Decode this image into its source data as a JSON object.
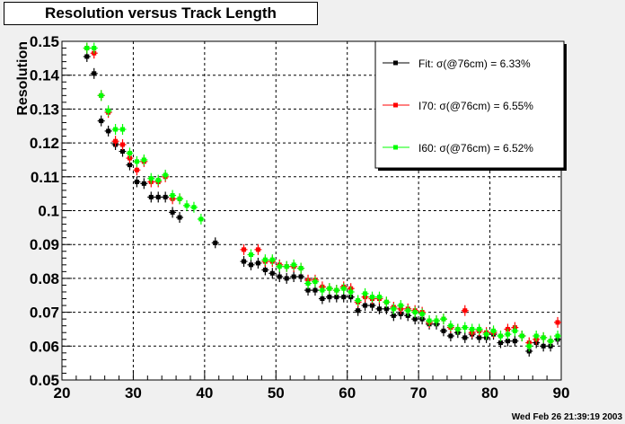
{
  "chart_data": {
    "type": "scatter",
    "title": "Resolution versus Track Length",
    "xlabel": "",
    "ylabel": "Resolution",
    "xlim": [
      20,
      90
    ],
    "ylim": [
      0.05,
      0.15
    ],
    "grid": true,
    "legend_placement": "top-right",
    "x_ticks": [
      "20",
      "30",
      "40",
      "50",
      "60",
      "70",
      "80",
      "90"
    ],
    "y_ticks": [
      "0.05",
      "0.06",
      "0.07",
      "0.08",
      "0.09",
      "0.1",
      "0.11",
      "0.12",
      "0.13",
      "0.14",
      "0.15"
    ],
    "series": [
      {
        "name": "Fit:  σ(@76cm) =  6.33%",
        "color": "#000000",
        "marker": "square",
        "points": [
          [
            23.5,
            0.1455
          ],
          [
            24.5,
            0.1405
          ],
          [
            25.5,
            0.1265
          ],
          [
            26.5,
            0.1235
          ],
          [
            27.5,
            0.1195
          ],
          [
            28.5,
            0.1175
          ],
          [
            29.5,
            0.1135
          ],
          [
            30.5,
            0.1085
          ],
          [
            31.5,
            0.108
          ],
          [
            32.5,
            0.104
          ],
          [
            33.5,
            0.104
          ],
          [
            34.5,
            0.104
          ],
          [
            35.5,
            0.0995
          ],
          [
            36.5,
            0.098
          ],
          [
            41.5,
            0.0905
          ],
          [
            45.5,
            0.085
          ],
          [
            46.5,
            0.084
          ],
          [
            47.5,
            0.0845
          ],
          [
            48.5,
            0.0825
          ],
          [
            49.5,
            0.0815
          ],
          [
            50.5,
            0.0805
          ],
          [
            51.5,
            0.08
          ],
          [
            52.5,
            0.0805
          ],
          [
            53.5,
            0.0805
          ],
          [
            54.5,
            0.0765
          ],
          [
            55.5,
            0.0765
          ],
          [
            56.5,
            0.074
          ],
          [
            57.5,
            0.0745
          ],
          [
            58.5,
            0.0745
          ],
          [
            59.5,
            0.0745
          ],
          [
            60.5,
            0.0745
          ],
          [
            61.5,
            0.0705
          ],
          [
            62.5,
            0.072
          ],
          [
            63.5,
            0.072
          ],
          [
            64.5,
            0.071
          ],
          [
            65.5,
            0.071
          ],
          [
            66.5,
            0.069
          ],
          [
            67.5,
            0.0695
          ],
          [
            68.5,
            0.069
          ],
          [
            69.5,
            0.068
          ],
          [
            70.5,
            0.068
          ],
          [
            71.5,
            0.0665
          ],
          [
            72.5,
            0.0665
          ],
          [
            73.5,
            0.0645
          ],
          [
            74.5,
            0.063
          ],
          [
            75.5,
            0.064
          ],
          [
            76.5,
            0.0625
          ],
          [
            77.5,
            0.0635
          ],
          [
            78.5,
            0.0625
          ],
          [
            79.5,
            0.0625
          ],
          [
            80.5,
            0.0635
          ],
          [
            81.5,
            0.061
          ],
          [
            82.5,
            0.0615
          ],
          [
            83.5,
            0.0615
          ],
          [
            84.5,
            0.063
          ],
          [
            85.5,
            0.0585
          ],
          [
            86.5,
            0.061
          ],
          [
            87.5,
            0.06
          ],
          [
            88.5,
            0.06
          ],
          [
            89.5,
            0.062
          ]
        ]
      },
      {
        "name": "I70:  σ(@76cm) =  6.55%",
        "color": "#ff0000",
        "marker": "square",
        "points": [
          [
            23.5,
            0.148
          ],
          [
            24.5,
            0.1465
          ],
          [
            25.5,
            0.134
          ],
          [
            26.5,
            0.129
          ],
          [
            27.5,
            0.1205
          ],
          [
            28.5,
            0.1195
          ],
          [
            29.5,
            0.1155
          ],
          [
            30.5,
            0.112
          ],
          [
            31.5,
            0.1145
          ],
          [
            32.5,
            0.1085
          ],
          [
            33.5,
            0.1085
          ],
          [
            34.5,
            0.11
          ],
          [
            35.5,
            0.1035
          ],
          [
            36.5,
            0.1035
          ],
          [
            45.5,
            0.0885
          ],
          [
            47.5,
            0.0885
          ],
          [
            48.5,
            0.085
          ],
          [
            49.5,
            0.085
          ],
          [
            50.5,
            0.084
          ],
          [
            51.5,
            0.0835
          ],
          [
            52.5,
            0.0835
          ],
          [
            53.5,
            0.083
          ],
          [
            54.5,
            0.0795
          ],
          [
            55.5,
            0.0795
          ],
          [
            56.5,
            0.0775
          ],
          [
            57.5,
            0.077
          ],
          [
            58.5,
            0.0765
          ],
          [
            59.5,
            0.0775
          ],
          [
            60.5,
            0.077
          ],
          [
            61.5,
            0.073
          ],
          [
            62.5,
            0.0745
          ],
          [
            63.5,
            0.074
          ],
          [
            64.5,
            0.074
          ],
          [
            65.5,
            0.073
          ],
          [
            66.5,
            0.0715
          ],
          [
            67.5,
            0.071
          ],
          [
            68.5,
            0.071
          ],
          [
            69.5,
            0.0705
          ],
          [
            70.5,
            0.07
          ],
          [
            71.5,
            0.067
          ],
          [
            72.5,
            0.0675
          ],
          [
            73.5,
            0.068
          ],
          [
            74.5,
            0.0655
          ],
          [
            75.5,
            0.065
          ],
          [
            76.5,
            0.0705
          ],
          [
            77.5,
            0.064
          ],
          [
            78.5,
            0.0645
          ],
          [
            79.5,
            0.064
          ],
          [
            80.5,
            0.064
          ],
          [
            81.5,
            0.063
          ],
          [
            82.5,
            0.065
          ],
          [
            83.5,
            0.0655
          ],
          [
            84.5,
            0.063
          ],
          [
            85.5,
            0.061
          ],
          [
            86.5,
            0.062
          ],
          [
            87.5,
            0.0625
          ],
          [
            88.5,
            0.0615
          ],
          [
            89.5,
            0.067
          ]
        ]
      },
      {
        "name": "I60:  σ(@76cm) =  6.52%",
        "color": "#00ff00",
        "marker": "square",
        "points": [
          [
            23.5,
            0.148
          ],
          [
            24.5,
            0.148
          ],
          [
            25.5,
            0.134
          ],
          [
            26.5,
            0.1295
          ],
          [
            27.5,
            0.124
          ],
          [
            28.5,
            0.124
          ],
          [
            29.5,
            0.117
          ],
          [
            30.5,
            0.1145
          ],
          [
            31.5,
            0.115
          ],
          [
            32.5,
            0.1095
          ],
          [
            33.5,
            0.109
          ],
          [
            34.5,
            0.1105
          ],
          [
            35.5,
            0.1045
          ],
          [
            36.5,
            0.1035
          ],
          [
            37.5,
            0.1015
          ],
          [
            38.5,
            0.101
          ],
          [
            39.5,
            0.0975
          ],
          [
            46.5,
            0.087
          ],
          [
            48.5,
            0.0855
          ],
          [
            49.5,
            0.0855
          ],
          [
            50.5,
            0.0835
          ],
          [
            51.5,
            0.0835
          ],
          [
            52.5,
            0.084
          ],
          [
            53.5,
            0.083
          ],
          [
            54.5,
            0.0785
          ],
          [
            55.5,
            0.079
          ],
          [
            56.5,
            0.0765
          ],
          [
            57.5,
            0.077
          ],
          [
            58.5,
            0.0765
          ],
          [
            59.5,
            0.077
          ],
          [
            60.5,
            0.076
          ],
          [
            61.5,
            0.0735
          ],
          [
            62.5,
            0.0755
          ],
          [
            63.5,
            0.0745
          ],
          [
            64.5,
            0.0745
          ],
          [
            65.5,
            0.073
          ],
          [
            66.5,
            0.071
          ],
          [
            67.5,
            0.072
          ],
          [
            68.5,
            0.0705
          ],
          [
            69.5,
            0.07
          ],
          [
            70.5,
            0.0695
          ],
          [
            71.5,
            0.0675
          ],
          [
            72.5,
            0.0675
          ],
          [
            73.5,
            0.068
          ],
          [
            74.5,
            0.066
          ],
          [
            75.5,
            0.065
          ],
          [
            76.5,
            0.0655
          ],
          [
            77.5,
            0.065
          ],
          [
            78.5,
            0.065
          ],
          [
            79.5,
            0.0635
          ],
          [
            80.5,
            0.0645
          ],
          [
            81.5,
            0.063
          ],
          [
            82.5,
            0.0635
          ],
          [
            83.5,
            0.0645
          ],
          [
            84.5,
            0.063
          ],
          [
            85.5,
            0.06
          ],
          [
            86.5,
            0.063
          ],
          [
            87.5,
            0.0625
          ],
          [
            88.5,
            0.0615
          ],
          [
            89.5,
            0.063
          ]
        ]
      }
    ]
  },
  "footer": {
    "timestamp": "Wed Feb 26 21:39:19 2003"
  },
  "colors": {
    "background": "#f0f0f0",
    "frame": "#ffffff"
  }
}
